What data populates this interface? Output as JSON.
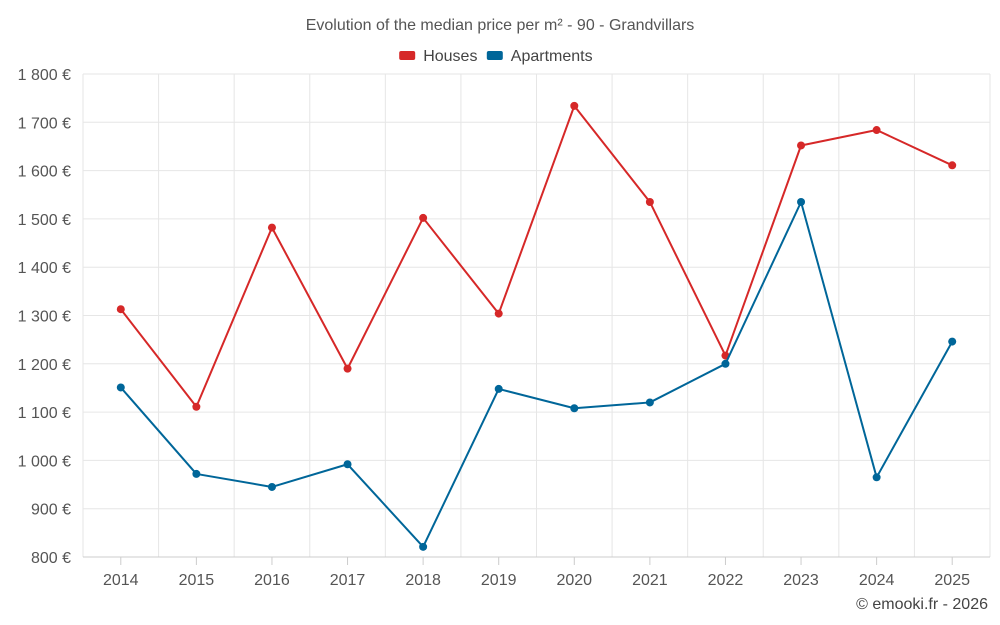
{
  "chart_data": {
    "type": "line",
    "title": "Evolution of the median price per m² - 90 - Grandvillars",
    "categories": [
      "2014",
      "2015",
      "2016",
      "2017",
      "2018",
      "2019",
      "2020",
      "2021",
      "2022",
      "2023",
      "2024",
      "2025"
    ],
    "series": [
      {
        "name": "Houses",
        "color": "#d62828",
        "values": [
          1313,
          1111,
          1482,
          1190,
          1502,
          1304,
          1734,
          1535,
          1217,
          1652,
          1684,
          1611
        ]
      },
      {
        "name": "Apartments",
        "color": "#006699",
        "values": [
          1151,
          972,
          945,
          992,
          821,
          1148,
          1108,
          1120,
          1200,
          1535,
          965,
          1246
        ]
      }
    ],
    "ylim": [
      800,
      1800
    ],
    "yticks": [
      800,
      900,
      1000,
      1100,
      1200,
      1300,
      1400,
      1500,
      1600,
      1700,
      1800
    ],
    "ytick_labels": [
      "800 €",
      "900 €",
      "1 000 €",
      "1 100 €",
      "1 200 €",
      "1 300 €",
      "1 400 €",
      "1 500 €",
      "1 600 €",
      "1 700 €",
      "1 800 €"
    ],
    "xlabel": "",
    "ylabel": "",
    "grid": true,
    "legend_position": "top-center"
  },
  "credit": "© emooki.fr - 2026"
}
